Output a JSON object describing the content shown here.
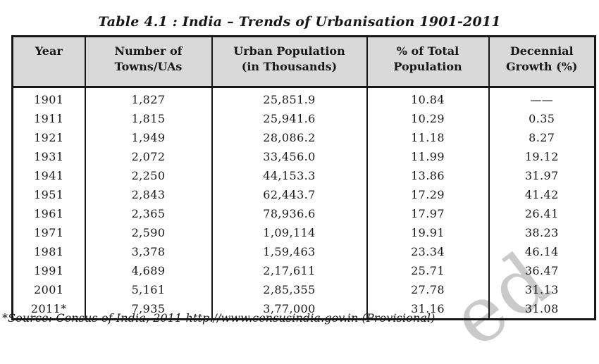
{
  "page": {
    "title": "Table 4.1 : India – Trends of Urbanisation 1901-2011",
    "footnote": "*Source: Census of India, 2011 http.//www.censusindia.gov.in (Provisional)",
    "watermark_text": "ed"
  },
  "table": {
    "headers": [
      {
        "line1": "Year",
        "line2": ""
      },
      {
        "line1": "Number of",
        "line2": "Towns/UAs"
      },
      {
        "line1": "Urban Population",
        "line2": "(in Thousands)"
      },
      {
        "line1": "% of Total",
        "line2": "Population"
      },
      {
        "line1": "Decennial",
        "line2": "Growth (%)"
      }
    ],
    "rows": [
      [
        "1901",
        "1,827",
        "25,851.9",
        "10.84",
        "——"
      ],
      [
        "1911",
        "1,815",
        "25,941.6",
        "10.29",
        "0.35"
      ],
      [
        "1921",
        "1,949",
        "28,086.2",
        "11.18",
        "8.27"
      ],
      [
        "1931",
        "2,072",
        "33,456.0",
        "11.99",
        "19.12"
      ],
      [
        "1941",
        "2,250",
        "44,153.3",
        "13.86",
        "31.97"
      ],
      [
        "1951",
        "2,843",
        "62,443.7",
        "17.29",
        "41.42"
      ],
      [
        "1961",
        "2,365",
        "78,936.6",
        "17.97",
        "26.41"
      ],
      [
        "1971",
        "2,590",
        "1,09,114",
        "19.91",
        "38.23"
      ],
      [
        "1981",
        "3,378",
        "1,59,463",
        "23.34",
        "46.14"
      ],
      [
        "1991",
        "4,689",
        "2,17,611",
        "25.71",
        "36.47"
      ],
      [
        "2001",
        "5,161",
        "2,85,355",
        "27.78",
        "31.13"
      ],
      [
        "2011*",
        "7,935",
        "3,77,000",
        "31.16",
        "31.08"
      ]
    ]
  },
  "colors": {
    "header_bg": "#d9d9d9",
    "border": "#171717",
    "text": "#171717",
    "watermark": "#cacaca"
  }
}
